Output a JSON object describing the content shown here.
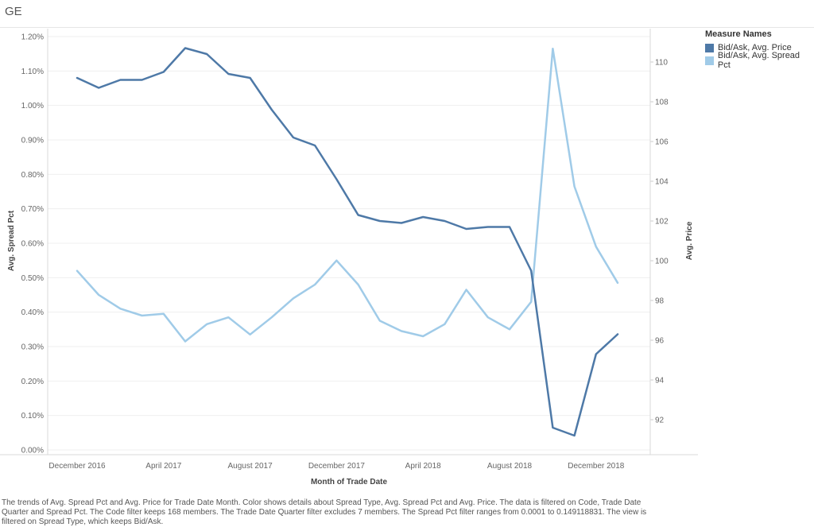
{
  "title": "GE",
  "caption": "The trends of Avg. Spread Pct and Avg. Price for Trade Date Month.  Color shows details about Spread Type, Avg. Spread Pct and Avg. Price. The data is filtered on Code, Trade Date Quarter and Spread Pct. The Code filter keeps 168 members. The Trade Date Quarter filter excludes 7 members. The Spread Pct filter ranges from 0.0001 to 0.149118831. The view is filtered on Spread Type, which keeps Bid/Ask.",
  "legend": {
    "title": "Measure Names",
    "items": [
      {
        "label": "Bid/Ask, Avg. Price",
        "color": "#4e79a7"
      },
      {
        "label": "Bid/Ask, Avg. Spread Pct",
        "color": "#a0cbe8"
      }
    ]
  },
  "chart_data": {
    "type": "line",
    "x": [
      "2016-12",
      "2017-01",
      "2017-02",
      "2017-03",
      "2017-04",
      "2017-05",
      "2017-06",
      "2017-07",
      "2017-08",
      "2017-09",
      "2017-10",
      "2017-11",
      "2017-12",
      "2018-01",
      "2018-02",
      "2018-03",
      "2018-04",
      "2018-05",
      "2018-06",
      "2018-07",
      "2018-08",
      "2018-09",
      "2018-10",
      "2018-11",
      "2018-12",
      "2019-01",
      "2019-02"
    ],
    "xlabel": "Month of Trade Date",
    "x_ticks": [
      "December 2016",
      "April 2017",
      "August 2017",
      "December 2017",
      "April 2018",
      "August 2018",
      "December 2018"
    ],
    "y_left": {
      "label": "Avg. Spread Pct",
      "ticks": [
        "0.00%",
        "0.10%",
        "0.20%",
        "0.30%",
        "0.40%",
        "0.50%",
        "0.60%",
        "0.70%",
        "0.80%",
        "0.90%",
        "1.00%",
        "1.10%",
        "1.20%"
      ],
      "range": [
        0,
        1.2
      ]
    },
    "y_right": {
      "label": "Avg. Price",
      "ticks": [
        "92",
        "94",
        "96",
        "98",
        "100",
        "102",
        "104",
        "106",
        "108",
        "110"
      ],
      "range": [
        90.8,
        111.6
      ]
    },
    "series": [
      {
        "name": "Bid/Ask, Avg. Price",
        "axis": "right",
        "color": "#4e79a7",
        "values": [
          109.2,
          108.7,
          109.1,
          109.1,
          109.5,
          110.7,
          110.4,
          109.4,
          109.2,
          107.6,
          106.2,
          105.8,
          104.1,
          102.3,
          102.0,
          101.9,
          102.2,
          102.0,
          101.6,
          101.7,
          101.7,
          99.5,
          91.6,
          91.2,
          95.3,
          96.3,
          null
        ]
      },
      {
        "name": "Bid/Ask, Avg. Spread Pct",
        "axis": "left",
        "color": "#a0cbe8",
        "values": [
          0.52,
          0.45,
          0.41,
          0.39,
          0.395,
          0.315,
          0.365,
          0.385,
          0.335,
          0.385,
          0.44,
          0.48,
          0.55,
          0.48,
          0.375,
          0.345,
          0.33,
          0.365,
          0.465,
          0.385,
          0.35,
          0.43,
          1.165,
          0.765,
          0.59,
          0.485,
          null
        ]
      }
    ],
    "grid": true,
    "legend_position": "right"
  }
}
